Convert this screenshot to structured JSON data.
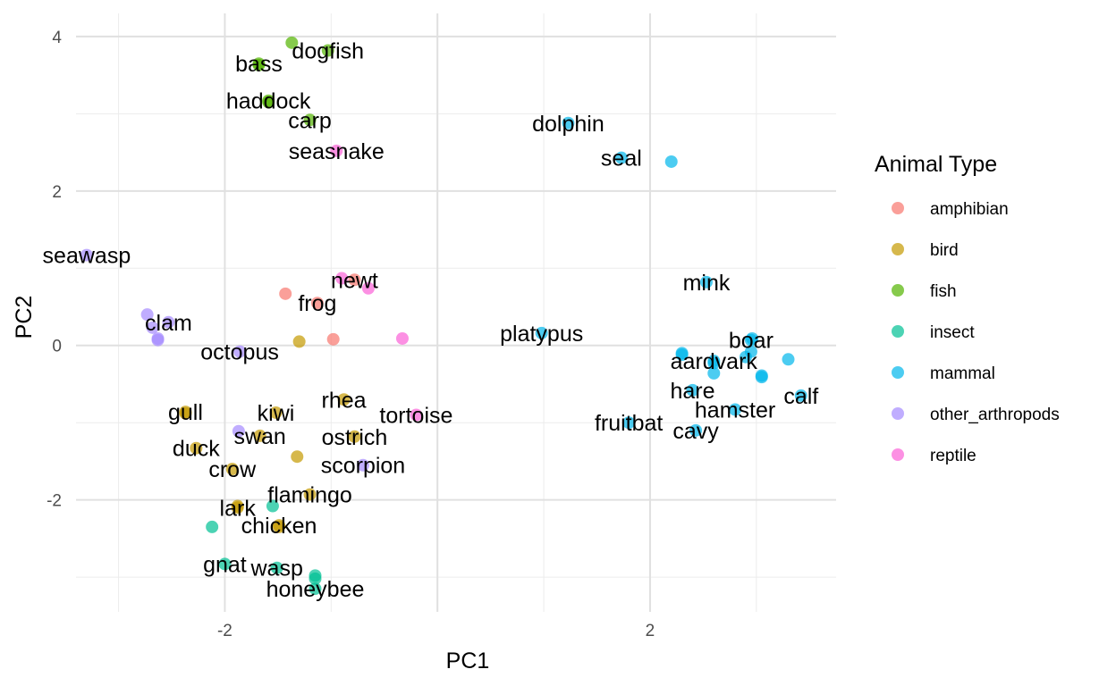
{
  "chart_data": {
    "type": "scatter",
    "xlabel": "PC1",
    "ylabel": "PC2",
    "xlim": [
      -3.4,
      3.75
    ],
    "ylim": [
      -3.45,
      4.3
    ],
    "x_ticks": [
      {
        "value": -2,
        "label": "-2"
      },
      {
        "value": 0,
        "label": ""
      },
      {
        "value": 2,
        "label": "2"
      }
    ],
    "y_ticks": [
      {
        "value": -2,
        "label": "-2"
      },
      {
        "value": 0,
        "label": "0"
      },
      {
        "value": 2,
        "label": "2"
      },
      {
        "value": 4,
        "label": "4"
      }
    ],
    "x_minor": [
      -3,
      -1,
      1,
      3
    ],
    "y_minor": [
      -3,
      -1,
      1,
      3
    ],
    "grid": true,
    "legend": {
      "title": "Animal Type",
      "position": "right",
      "entries": [
        {
          "label": "amphibian",
          "color": "#F8766D"
        },
        {
          "label": "bird",
          "color": "#C49A00"
        },
        {
          "label": "fish",
          "color": "#53B400"
        },
        {
          "label": "insect",
          "color": "#00C094"
        },
        {
          "label": "mammal",
          "color": "#00B6EB"
        },
        {
          "label": "other_arthropods",
          "color": "#A58AFF"
        },
        {
          "label": "reptile",
          "color": "#FB61D7"
        }
      ]
    },
    "points": [
      {
        "x": -1.37,
        "y": 3.92,
        "type": "fish",
        "label": ""
      },
      {
        "x": -1.03,
        "y": 3.82,
        "type": "fish",
        "label": "dogfish"
      },
      {
        "x": -1.68,
        "y": 3.65,
        "type": "fish",
        "label": "bass"
      },
      {
        "x": -1.68,
        "y": 3.63,
        "type": "fish",
        "label": ""
      },
      {
        "x": -1.59,
        "y": 3.17,
        "type": "fish",
        "label": "haddock"
      },
      {
        "x": -1.59,
        "y": 3.15,
        "type": "fish",
        "label": ""
      },
      {
        "x": -1.2,
        "y": 2.92,
        "type": "fish",
        "label": "carp"
      },
      {
        "x": -0.95,
        "y": 2.52,
        "type": "reptile",
        "label": "seasnake"
      },
      {
        "x": 1.23,
        "y": 2.88,
        "type": "mammal",
        "label": "dolphin"
      },
      {
        "x": 1.73,
        "y": 2.43,
        "type": "mammal",
        "label": "seal"
      },
      {
        "x": 2.2,
        "y": 2.38,
        "type": "mammal",
        "label": ""
      },
      {
        "x": -3.3,
        "y": 1.17,
        "type": "other_arthropods",
        "label": "seawasp"
      },
      {
        "x": -0.9,
        "y": 0.87,
        "type": "reptile",
        "label": ""
      },
      {
        "x": -0.78,
        "y": 0.85,
        "type": "amphibian",
        "label": "newt"
      },
      {
        "x": -0.65,
        "y": 0.74,
        "type": "reptile",
        "label": ""
      },
      {
        "x": -1.43,
        "y": 0.67,
        "type": "amphibian",
        "label": ""
      },
      {
        "x": -1.13,
        "y": 0.55,
        "type": "amphibian",
        "label": "frog"
      },
      {
        "x": -2.73,
        "y": 0.4,
        "type": "other_arthropods",
        "label": ""
      },
      {
        "x": -2.53,
        "y": 0.3,
        "type": "other_arthropods",
        "label": "clam"
      },
      {
        "x": -2.68,
        "y": 0.23,
        "type": "other_arthropods",
        "label": ""
      },
      {
        "x": -2.63,
        "y": 0.07,
        "type": "other_arthropods",
        "label": ""
      },
      {
        "x": -2.63,
        "y": 0.09,
        "type": "other_arthropods",
        "label": ""
      },
      {
        "x": -1.3,
        "y": 0.05,
        "type": "bird",
        "label": ""
      },
      {
        "x": -0.98,
        "y": 0.08,
        "type": "amphibian",
        "label": ""
      },
      {
        "x": -0.33,
        "y": 0.09,
        "type": "reptile",
        "label": ""
      },
      {
        "x": -1.86,
        "y": -0.08,
        "type": "other_arthropods",
        "label": "octopus"
      },
      {
        "x": 0.98,
        "y": 0.16,
        "type": "mammal",
        "label": "platypus"
      },
      {
        "x": 2.53,
        "y": 0.82,
        "type": "mammal",
        "label": "mink"
      },
      {
        "x": 2.95,
        "y": 0.07,
        "type": "mammal",
        "label": "boar"
      },
      {
        "x": 2.96,
        "y": 0.09,
        "type": "mammal",
        "label": ""
      },
      {
        "x": 3.3,
        "y": -0.18,
        "type": "mammal",
        "label": ""
      },
      {
        "x": 2.9,
        "y": -0.15,
        "type": "mammal",
        "label": ""
      },
      {
        "x": 2.95,
        "y": -0.08,
        "type": "mammal",
        "label": ""
      },
      {
        "x": 2.3,
        "y": -0.1,
        "type": "mammal",
        "label": ""
      },
      {
        "x": 2.3,
        "y": -0.12,
        "type": "mammal",
        "label": ""
      },
      {
        "x": 2.6,
        "y": -0.2,
        "type": "mammal",
        "label": "aardvark"
      },
      {
        "x": 2.6,
        "y": -0.23,
        "type": "mammal",
        "label": ""
      },
      {
        "x": 2.6,
        "y": -0.36,
        "type": "mammal",
        "label": ""
      },
      {
        "x": 3.05,
        "y": -0.41,
        "type": "mammal",
        "label": ""
      },
      {
        "x": 3.05,
        "y": -0.39,
        "type": "mammal",
        "label": ""
      },
      {
        "x": 3.42,
        "y": -0.65,
        "type": "mammal",
        "label": "calf"
      },
      {
        "x": 2.4,
        "y": -0.58,
        "type": "mammal",
        "label": "hare"
      },
      {
        "x": 2.8,
        "y": -0.83,
        "type": "mammal",
        "label": "hamster"
      },
      {
        "x": 1.8,
        "y": -1.0,
        "type": "mammal",
        "label": "fruitbat"
      },
      {
        "x": 2.43,
        "y": -1.1,
        "type": "mammal",
        "label": "cavy"
      },
      {
        "x": -0.88,
        "y": -0.7,
        "type": "bird",
        "label": "rhea"
      },
      {
        "x": -0.2,
        "y": -0.9,
        "type": "reptile",
        "label": "tortoise"
      },
      {
        "x": -2.37,
        "y": -0.86,
        "type": "bird",
        "label": "gull"
      },
      {
        "x": -2.37,
        "y": -0.88,
        "type": "bird",
        "label": ""
      },
      {
        "x": -1.52,
        "y": -0.87,
        "type": "bird",
        "label": "kiwi"
      },
      {
        "x": -1.87,
        "y": -1.11,
        "type": "other_arthropods",
        "label": ""
      },
      {
        "x": -1.67,
        "y": -1.17,
        "type": "bird",
        "label": "swan"
      },
      {
        "x": -0.78,
        "y": -1.18,
        "type": "bird",
        "label": "ostrich"
      },
      {
        "x": -2.27,
        "y": -1.33,
        "type": "bird",
        "label": "duck"
      },
      {
        "x": -1.32,
        "y": -1.44,
        "type": "bird",
        "label": ""
      },
      {
        "x": -0.7,
        "y": -1.55,
        "type": "other_arthropods",
        "label": "scorpion"
      },
      {
        "x": -1.93,
        "y": -1.6,
        "type": "bird",
        "label": "crow"
      },
      {
        "x": -1.2,
        "y": -1.93,
        "type": "bird",
        "label": "flamingo"
      },
      {
        "x": -1.88,
        "y": -2.1,
        "type": "bird",
        "label": "lark"
      },
      {
        "x": -1.88,
        "y": -2.08,
        "type": "bird",
        "label": ""
      },
      {
        "x": -1.55,
        "y": -2.08,
        "type": "insect",
        "label": ""
      },
      {
        "x": -1.49,
        "y": -2.33,
        "type": "bird",
        "label": "chicken"
      },
      {
        "x": -1.49,
        "y": -2.35,
        "type": "bird",
        "label": ""
      },
      {
        "x": -2.12,
        "y": -2.35,
        "type": "insect",
        "label": ""
      },
      {
        "x": -2.0,
        "y": -2.83,
        "type": "insect",
        "label": "gnat"
      },
      {
        "x": -1.51,
        "y": -2.88,
        "type": "insect",
        "label": "wasp"
      },
      {
        "x": -1.15,
        "y": -2.98,
        "type": "insect",
        "label": ""
      },
      {
        "x": -1.15,
        "y": -3.02,
        "type": "insect",
        "label": ""
      },
      {
        "x": -1.15,
        "y": -3.15,
        "type": "insect",
        "label": "honeybee"
      }
    ]
  }
}
